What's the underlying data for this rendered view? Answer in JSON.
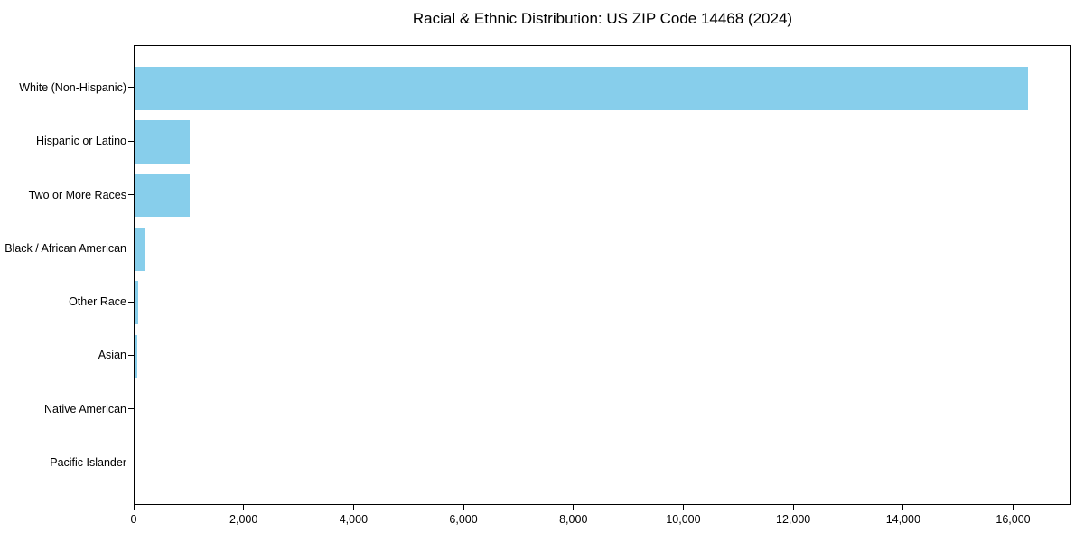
{
  "chart_data": {
    "type": "bar",
    "orientation": "horizontal",
    "title": "Racial & Ethnic Distribution: US ZIP Code 14468 (2024)",
    "categories": [
      "White (Non-Hispanic)",
      "Hispanic or Latino",
      "Two or More Races",
      "Black / African American",
      "Other Race",
      "Asian",
      "Native American",
      "Pacific Islander"
    ],
    "values": [
      16250,
      1010,
      1000,
      200,
      60,
      55,
      0,
      0
    ],
    "xlabel": "",
    "ylabel": "",
    "xlim": [
      0,
      17060
    ],
    "xticks": [
      0,
      2000,
      4000,
      6000,
      8000,
      10000,
      12000,
      14000,
      16000
    ],
    "xtick_labels": [
      "0",
      "2,000",
      "4,000",
      "6,000",
      "8,000",
      "10,000",
      "12,000",
      "14,000",
      "16,000"
    ],
    "bar_color": "#87CEEB",
    "axis_color": "#000000",
    "background_color": "#FFFFFF",
    "grid": false,
    "legend": null
  }
}
